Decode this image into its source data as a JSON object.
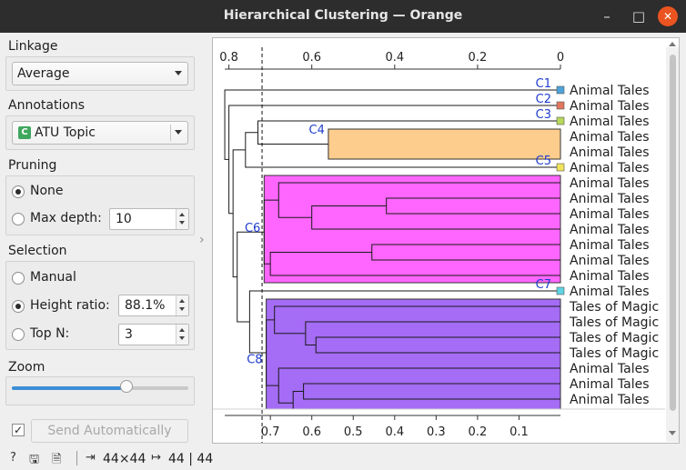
{
  "window": {
    "title": "Hierarchical Clustering — Orange"
  },
  "linkage": {
    "label": "Linkage",
    "value": "Average"
  },
  "annotations": {
    "label": "Annotations",
    "value": "ATU Topic",
    "badge": "C"
  },
  "pruning": {
    "label": "Pruning",
    "none_label": "None",
    "max_depth_label": "Max depth:",
    "max_depth_value": "10",
    "selected": "none"
  },
  "selection": {
    "label": "Selection",
    "manual_label": "Manual",
    "height_ratio_label": "Height ratio:",
    "height_ratio_value": "88.1%",
    "top_n_label": "Top N:",
    "top_n_value": "3",
    "selected": "height_ratio"
  },
  "zoom": {
    "label": "Zoom",
    "level": 0.65
  },
  "commit": {
    "auto_checked": true,
    "checkmark": "✓",
    "button_label": "Send Automatically"
  },
  "status": {
    "input_size": "44×44",
    "output_size": "44 | 44"
  },
  "colors": {
    "c1": "#4da3d9",
    "c2": "#e0775d",
    "c3": "#b7d85a",
    "c4": "#fdcd8d",
    "c5": "#f1e35b",
    "c6": "#ff66ff",
    "c7": "#5fd3e2",
    "c8": "#a56cf5",
    "cluster_label": "#1f3ccf"
  },
  "chart_data": {
    "type": "dendrogram",
    "top_axis_ticks": [
      "0.8",
      "0.6",
      "0.4",
      "0.2",
      "0"
    ],
    "bottom_axis_ticks": [
      "0.7",
      "0.6",
      "0.5",
      "0.4",
      "0.3",
      "0.2",
      "0.1"
    ],
    "axis_range": [
      0.81,
      0
    ],
    "cutoff_height": 0.72,
    "leaves": [
      "Animal Tales",
      "Animal Tales",
      "Animal Tales",
      "Animal Tales",
      "Animal Tales",
      "Animal Tales",
      "Animal Tales",
      "Animal Tales",
      "Animal Tales",
      "Animal Tales",
      "Animal Tales",
      "Animal Tales",
      "Animal Tales",
      "Animal Tales",
      "Tales of Magic",
      "Tales of Magic",
      "Tales of Magic",
      "Tales of Magic",
      "Animal Tales",
      "Animal Tales",
      "Animal Tales",
      "Animal Tales"
    ],
    "clusters": [
      {
        "label": "C1",
        "first": 0,
        "last": 0,
        "height": 0
      },
      {
        "label": "C2",
        "first": 1,
        "last": 1,
        "height": 0
      },
      {
        "label": "C3",
        "first": 2,
        "last": 2,
        "height": 0
      },
      {
        "label": "C4",
        "first": 3,
        "last": 4,
        "height": 0.56
      },
      {
        "label": "C5",
        "first": 5,
        "last": 5,
        "height": 0
      },
      {
        "label": "C6",
        "first": 6,
        "last": 12,
        "height": 0.715
      },
      {
        "label": "C7",
        "first": 13,
        "last": 13,
        "height": 0
      },
      {
        "label": "C8",
        "first": 14,
        "last": 21,
        "height": 0.71
      }
    ]
  }
}
